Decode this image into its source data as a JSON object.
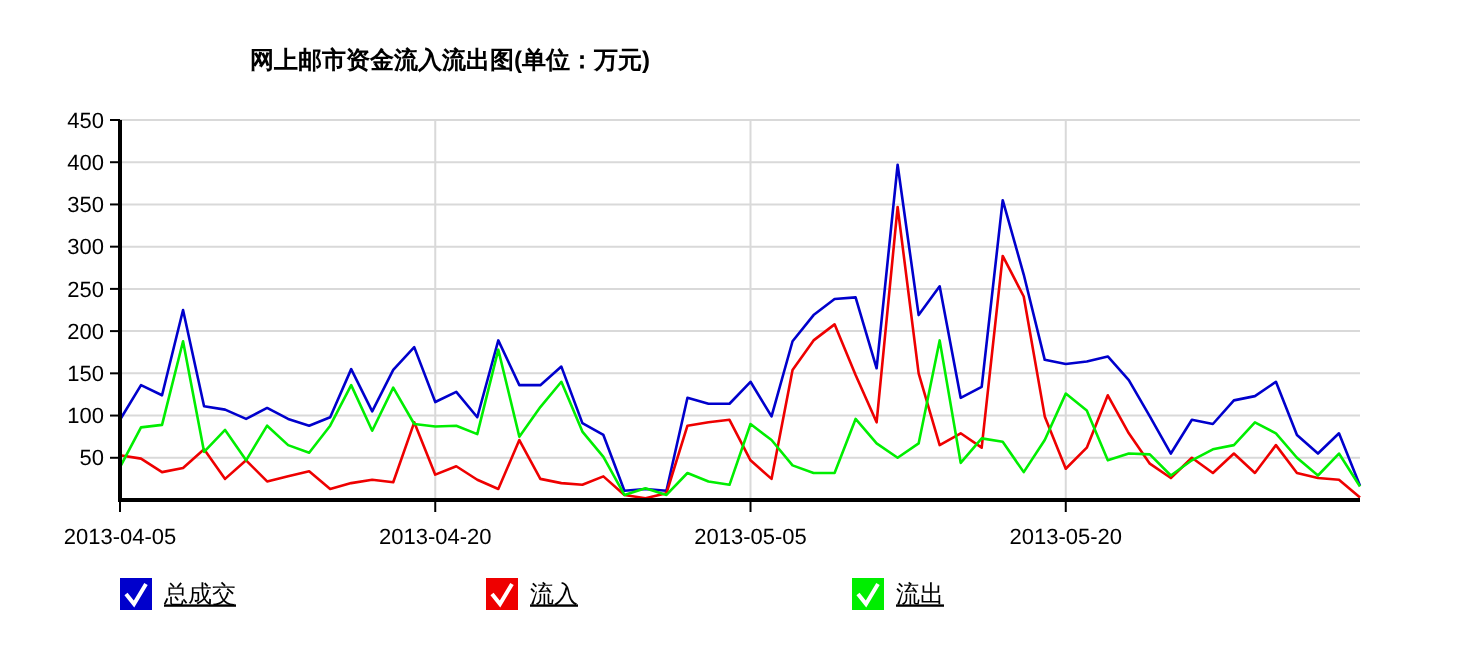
{
  "chart_data": {
    "type": "line",
    "title": "网上邮市资金流入流出图(单位：万元)",
    "x": [
      "2013-04-05",
      "2013-04-06",
      "2013-04-07",
      "2013-04-08",
      "2013-04-09",
      "2013-04-10",
      "2013-04-11",
      "2013-04-12",
      "2013-04-13",
      "2013-04-14",
      "2013-04-15",
      "2013-04-16",
      "2013-04-17",
      "2013-04-18",
      "2013-04-19",
      "2013-04-20",
      "2013-04-21",
      "2013-04-22",
      "2013-04-23",
      "2013-04-24",
      "2013-04-25",
      "2013-04-26",
      "2013-04-27",
      "2013-04-28",
      "2013-04-29",
      "2013-04-30",
      "2013-05-01",
      "2013-05-02",
      "2013-05-03",
      "2013-05-04",
      "2013-05-05",
      "2013-05-06",
      "2013-05-07",
      "2013-05-08",
      "2013-05-09",
      "2013-05-10",
      "2013-05-11",
      "2013-05-12",
      "2013-05-13",
      "2013-05-14",
      "2013-05-15",
      "2013-05-16",
      "2013-05-17",
      "2013-05-18",
      "2013-05-19",
      "2013-05-20",
      "2013-05-21",
      "2013-05-22",
      "2013-05-23",
      "2013-05-24",
      "2013-05-25",
      "2013-05-26",
      "2013-05-27",
      "2013-05-28",
      "2013-05-29",
      "2013-05-30",
      "2013-05-31",
      "2013-06-01",
      "2013-06-02",
      "2013-06-03"
    ],
    "series": [
      {
        "name": "总成交",
        "color": "#0000cc",
        "values": [
          95,
          136,
          124,
          225,
          111,
          107,
          96,
          109,
          96,
          88,
          98,
          155,
          105,
          154,
          181,
          116,
          128,
          98,
          189,
          136,
          136,
          158,
          91,
          77,
          11,
          13,
          11,
          121,
          114,
          114,
          140,
          99,
          188,
          219,
          238,
          240,
          156,
          397,
          219,
          253,
          121,
          134,
          355,
          267,
          166,
          161,
          164,
          170,
          142,
          99,
          55,
          95,
          90,
          118,
          123,
          140,
          77,
          55,
          79,
          17
        ]
      },
      {
        "name": "流入",
        "color": "#ee0000",
        "values": [
          53,
          49,
          33,
          38,
          60,
          25,
          47,
          22,
          28,
          34,
          13,
          20,
          24,
          21,
          92,
          30,
          40,
          24,
          13,
          71,
          25,
          20,
          18,
          28,
          6,
          2,
          8,
          88,
          92,
          95,
          47,
          25,
          154,
          189,
          208,
          148,
          92,
          347,
          150,
          65,
          79,
          62,
          289,
          241,
          99,
          37,
          62,
          124,
          79,
          43,
          26,
          50,
          32,
          55,
          32,
          65,
          32,
          26,
          24,
          3
        ]
      },
      {
        "name": "流出",
        "color": "#00ee00",
        "values": [
          39,
          86,
          89,
          188,
          57,
          83,
          47,
          88,
          65,
          56,
          88,
          136,
          82,
          133,
          90,
          87,
          88,
          78,
          178,
          75,
          110,
          140,
          81,
          51,
          6,
          14,
          6,
          32,
          22,
          18,
          90,
          71,
          41,
          32,
          32,
          96,
          67,
          50,
          67,
          189,
          44,
          73,
          69,
          33,
          71,
          126,
          106,
          47,
          55,
          54,
          29,
          47,
          60,
          65,
          92,
          79,
          50,
          29,
          55,
          16
        ]
      }
    ],
    "xlim": [
      "2013-04-05",
      "2013-06-03"
    ],
    "xticks": [
      "2013-04-05",
      "2013-04-20",
      "2013-05-05",
      "2013-05-20"
    ],
    "ylim": [
      0,
      450
    ],
    "yticks": [
      50,
      100,
      150,
      200,
      250,
      300,
      350,
      400,
      450
    ],
    "grid": true,
    "legend": "bottom",
    "marker": "none",
    "line_style": "solid"
  }
}
